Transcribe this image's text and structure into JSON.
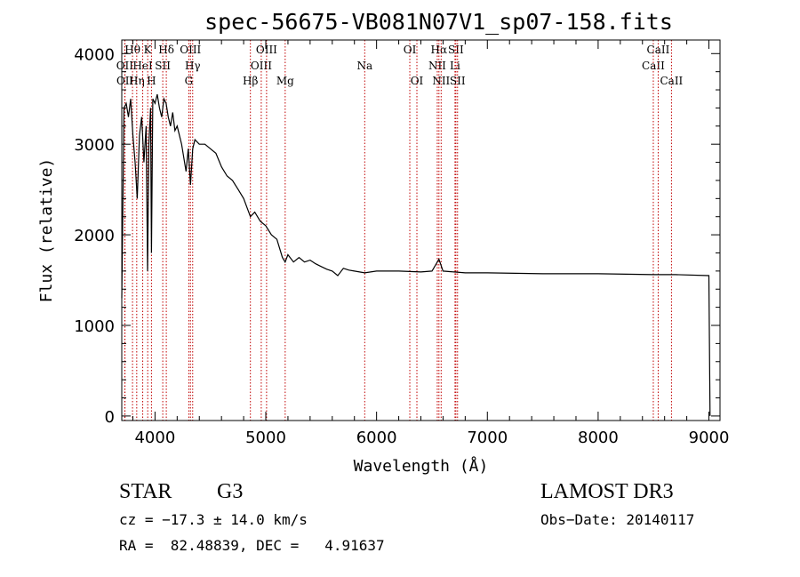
{
  "chart_data": {
    "type": "line",
    "title": "spec-56675-VB081N07V1_sp07-158.fits",
    "xlabel": "Wavelength (Å)",
    "ylabel": "Flux (relative)",
    "xlim": [
      3700,
      9100
    ],
    "ylim": [
      -50,
      4150
    ],
    "x_ticks": [
      4000,
      5000,
      6000,
      7000,
      8000,
      9000
    ],
    "y_ticks": [
      0,
      1000,
      2000,
      3000,
      4000
    ],
    "series": [
      {
        "name": "flux",
        "x": [
          3700,
          3720,
          3740,
          3760,
          3780,
          3800,
          3820,
          3840,
          3860,
          3880,
          3900,
          3920,
          3933,
          3945,
          3960,
          3968,
          3980,
          4000,
          4020,
          4040,
          4060,
          4080,
          4100,
          4120,
          4140,
          4160,
          4180,
          4200,
          4240,
          4280,
          4300,
          4320,
          4340,
          4360,
          4400,
          4450,
          4500,
          4550,
          4600,
          4650,
          4700,
          4750,
          4800,
          4861,
          4900,
          4950,
          5000,
          5050,
          5100,
          5150,
          5175,
          5200,
          5250,
          5300,
          5350,
          5400,
          5450,
          5500,
          5550,
          5600,
          5650,
          5700,
          5750,
          5800,
          5893,
          6000,
          6200,
          6400,
          6500,
          6563,
          6600,
          6700,
          6800,
          7000,
          7500,
          8000,
          8500,
          8700,
          9000,
          9010
        ],
        "y": [
          1300,
          3400,
          3450,
          3300,
          3500,
          3100,
          2800,
          2400,
          3100,
          3300,
          2800,
          3200,
          1600,
          3000,
          3400,
          1800,
          3500,
          3450,
          3550,
          3400,
          3300,
          3500,
          3450,
          3300,
          3200,
          3350,
          3150,
          3200,
          3000,
          2700,
          2950,
          2550,
          2950,
          3050,
          3000,
          3000,
          2950,
          2900,
          2750,
          2650,
          2600,
          2500,
          2400,
          2200,
          2250,
          2150,
          2100,
          2000,
          1950,
          1750,
          1700,
          1780,
          1700,
          1750,
          1700,
          1720,
          1680,
          1650,
          1620,
          1600,
          1550,
          1630,
          1610,
          1600,
          1580,
          1600,
          1600,
          1590,
          1600,
          1730,
          1600,
          1590,
          1580,
          1580,
          1570,
          1570,
          1560,
          1560,
          1550,
          0
        ]
      }
    ],
    "lines": [
      {
        "label": "OII",
        "wavelength": 3727,
        "row": 1
      },
      {
        "label": "OII",
        "wavelength": 3729,
        "row": 2
      },
      {
        "label": "Hθ",
        "wavelength": 3797,
        "row": 0
      },
      {
        "label": "Hη",
        "wavelength": 3835,
        "row": 2
      },
      {
        "label": "HeI",
        "wavelength": 3889,
        "row": 1
      },
      {
        "label": "K",
        "wavelength": 3934,
        "row": 0
      },
      {
        "label": "H",
        "wavelength": 3968,
        "row": 2
      },
      {
        "label": "SII",
        "wavelength": 4070,
        "row": 1
      },
      {
        "label": "Hδ",
        "wavelength": 4102,
        "row": 0
      },
      {
        "label": "OIII",
        "wavelength": 4320,
        "row": 0
      },
      {
        "label": "Hγ",
        "wavelength": 4340,
        "row": 1
      },
      {
        "label": "G",
        "wavelength": 4305,
        "row": 2
      },
      {
        "label": "Hβ",
        "wavelength": 4861,
        "row": 2
      },
      {
        "label": "OIII",
        "wavelength": 4959,
        "row": 1
      },
      {
        "label": "OIII",
        "wavelength": 5007,
        "row": 0
      },
      {
        "label": "Mg",
        "wavelength": 5175,
        "row": 2
      },
      {
        "label": "Na",
        "wavelength": 5893,
        "row": 1
      },
      {
        "label": "OI",
        "wavelength": 6300,
        "row": 0
      },
      {
        "label": "OI",
        "wavelength": 6364,
        "row": 2
      },
      {
        "label": "NII",
        "wavelength": 6548,
        "row": 1
      },
      {
        "label": "Hα",
        "wavelength": 6563,
        "row": 0
      },
      {
        "label": "NII",
        "wavelength": 6583,
        "row": 2
      },
      {
        "label": "Li",
        "wavelength": 6708,
        "row": 1
      },
      {
        "label": "SII",
        "wavelength": 6716,
        "row": 0
      },
      {
        "label": "SII",
        "wavelength": 6731,
        "row": 2
      },
      {
        "label": "CaII",
        "wavelength": 8498,
        "row": 1
      },
      {
        "label": "CaII",
        "wavelength": 8542,
        "row": 0
      },
      {
        "label": "CaII",
        "wavelength": 8662,
        "row": 2
      }
    ]
  },
  "footer": {
    "class_label": "STAR",
    "subclass": "G3",
    "survey": "LAMOST DR3",
    "cz": "cz = −17.3 ± 14.0 km/s",
    "obs_date": "Obs−Date: 20140117",
    "coords": "RA =  82.48839, DEC =   4.91637"
  }
}
